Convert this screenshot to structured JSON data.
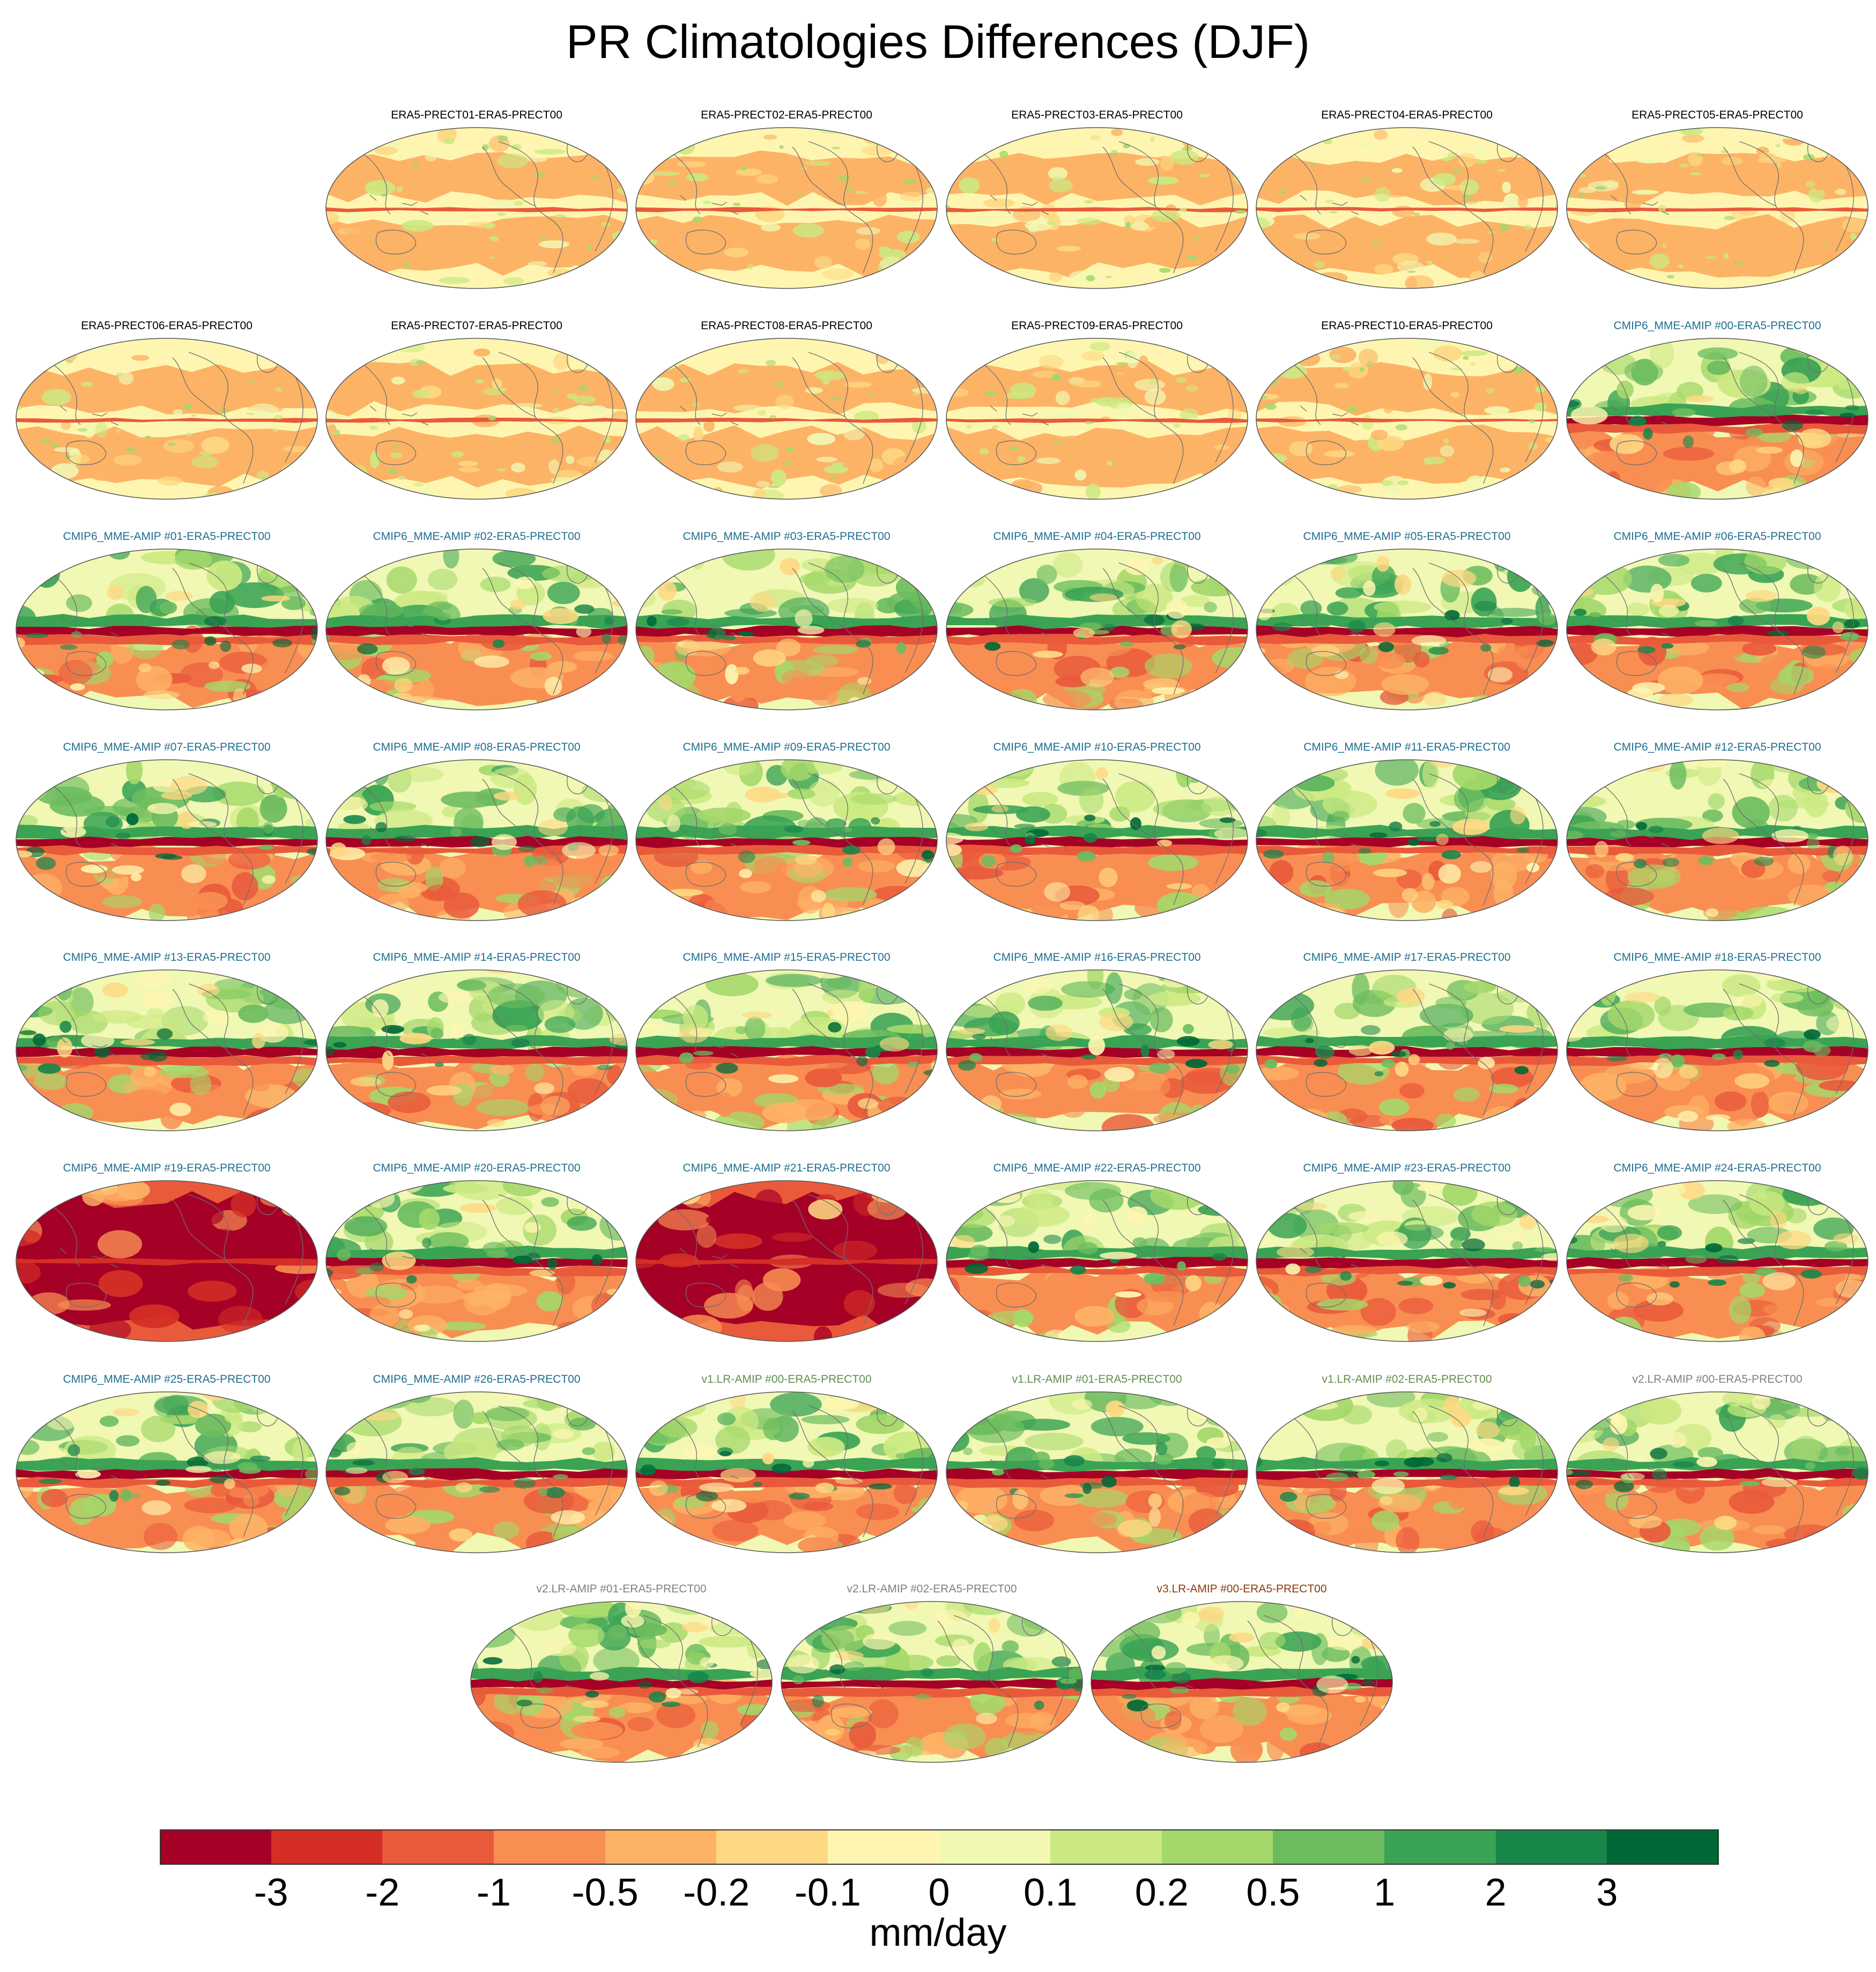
{
  "title": "PR Climatologies Differences (DJF)",
  "colorbar": {
    "units": "mm/day",
    "tick_labels": [
      "-3",
      "-2",
      "-1",
      "-0.5",
      "-0.2",
      "-0.1",
      "0",
      "0.1",
      "0.2",
      "0.5",
      "1",
      "2",
      "3"
    ],
    "colors": [
      "#a50026",
      "#d42e26",
      "#e95a3b",
      "#f98e52",
      "#fdb366",
      "#fed883",
      "#fef6b0",
      "#f0f8b4",
      "#cbe982",
      "#a4d86a",
      "#6cbc5f",
      "#3aa354",
      "#19864a",
      "#006837"
    ]
  },
  "panel_colors": {
    "obs": "#000000",
    "cmip6": "#1f6e8f",
    "v1": "#5f8f4f",
    "v2": "#808080",
    "v3": "#8b3a0e"
  },
  "panels": [
    {
      "label": "ERA5-PRECT01-ERA5-PRECT00",
      "group": "obs",
      "style": "obs"
    },
    {
      "label": "ERA5-PRECT02-ERA5-PRECT00",
      "group": "obs",
      "style": "obs"
    },
    {
      "label": "ERA5-PRECT03-ERA5-PRECT00",
      "group": "obs",
      "style": "obs"
    },
    {
      "label": "ERA5-PRECT04-ERA5-PRECT00",
      "group": "obs",
      "style": "obs"
    },
    {
      "label": "ERA5-PRECT05-ERA5-PRECT00",
      "group": "obs",
      "style": "obs"
    },
    {
      "label": "ERA5-PRECT06-ERA5-PRECT00",
      "group": "obs",
      "style": "obs"
    },
    {
      "label": "ERA5-PRECT07-ERA5-PRECT00",
      "group": "obs",
      "style": "obs"
    },
    {
      "label": "ERA5-PRECT08-ERA5-PRECT00",
      "group": "obs",
      "style": "obs"
    },
    {
      "label": "ERA5-PRECT09-ERA5-PRECT00",
      "group": "obs",
      "style": "obs"
    },
    {
      "label": "ERA5-PRECT10-ERA5-PRECT00",
      "group": "obs",
      "style": "obs"
    },
    {
      "label": "CMIP6_MME-AMIP  #00-ERA5-PRECT00",
      "group": "cmip6",
      "style": "model"
    },
    {
      "label": "CMIP6_MME-AMIP  #01-ERA5-PRECT00",
      "group": "cmip6",
      "style": "model"
    },
    {
      "label": "CMIP6_MME-AMIP  #02-ERA5-PRECT00",
      "group": "cmip6",
      "style": "model"
    },
    {
      "label": "CMIP6_MME-AMIP  #03-ERA5-PRECT00",
      "group": "cmip6",
      "style": "model"
    },
    {
      "label": "CMIP6_MME-AMIP  #04-ERA5-PRECT00",
      "group": "cmip6",
      "style": "model"
    },
    {
      "label": "CMIP6_MME-AMIP  #05-ERA5-PRECT00",
      "group": "cmip6",
      "style": "model"
    },
    {
      "label": "CMIP6_MME-AMIP  #06-ERA5-PRECT00",
      "group": "cmip6",
      "style": "model"
    },
    {
      "label": "CMIP6_MME-AMIP  #07-ERA5-PRECT00",
      "group": "cmip6",
      "style": "model"
    },
    {
      "label": "CMIP6_MME-AMIP  #08-ERA5-PRECT00",
      "group": "cmip6",
      "style": "model"
    },
    {
      "label": "CMIP6_MME-AMIP  #09-ERA5-PRECT00",
      "group": "cmip6",
      "style": "model"
    },
    {
      "label": "CMIP6_MME-AMIP  #10-ERA5-PRECT00",
      "group": "cmip6",
      "style": "model"
    },
    {
      "label": "CMIP6_MME-AMIP  #11-ERA5-PRECT00",
      "group": "cmip6",
      "style": "model"
    },
    {
      "label": "CMIP6_MME-AMIP  #12-ERA5-PRECT00",
      "group": "cmip6",
      "style": "model"
    },
    {
      "label": "CMIP6_MME-AMIP  #13-ERA5-PRECT00",
      "group": "cmip6",
      "style": "model"
    },
    {
      "label": "CMIP6_MME-AMIP  #14-ERA5-PRECT00",
      "group": "cmip6",
      "style": "model"
    },
    {
      "label": "CMIP6_MME-AMIP  #15-ERA5-PRECT00",
      "group": "cmip6",
      "style": "model"
    },
    {
      "label": "CMIP6_MME-AMIP  #16-ERA5-PRECT00",
      "group": "cmip6",
      "style": "model"
    },
    {
      "label": "CMIP6_MME-AMIP  #17-ERA5-PRECT00",
      "group": "cmip6",
      "style": "model"
    },
    {
      "label": "CMIP6_MME-AMIP  #18-ERA5-PRECT00",
      "group": "cmip6",
      "style": "model"
    },
    {
      "label": "CMIP6_MME-AMIP  #19-ERA5-PRECT00",
      "group": "cmip6",
      "style": "dry"
    },
    {
      "label": "CMIP6_MME-AMIP  #20-ERA5-PRECT00",
      "group": "cmip6",
      "style": "model"
    },
    {
      "label": "CMIP6_MME-AMIP  #21-ERA5-PRECT00",
      "group": "cmip6",
      "style": "dry"
    },
    {
      "label": "CMIP6_MME-AMIP  #22-ERA5-PRECT00",
      "group": "cmip6",
      "style": "model"
    },
    {
      "label": "CMIP6_MME-AMIP  #23-ERA5-PRECT00",
      "group": "cmip6",
      "style": "model"
    },
    {
      "label": "CMIP6_MME-AMIP  #24-ERA5-PRECT00",
      "group": "cmip6",
      "style": "model"
    },
    {
      "label": "CMIP6_MME-AMIP  #25-ERA5-PRECT00",
      "group": "cmip6",
      "style": "model"
    },
    {
      "label": "CMIP6_MME-AMIP  #26-ERA5-PRECT00",
      "group": "cmip6",
      "style": "model"
    },
    {
      "label": "v1.LR-AMIP  #00-ERA5-PRECT00",
      "group": "v1",
      "style": "model"
    },
    {
      "label": "v1.LR-AMIP  #01-ERA5-PRECT00",
      "group": "v1",
      "style": "model"
    },
    {
      "label": "v1.LR-AMIP  #02-ERA5-PRECT00",
      "group": "v1",
      "style": "model"
    },
    {
      "label": "v2.LR-AMIP  #00-ERA5-PRECT00",
      "group": "v2",
      "style": "model"
    },
    {
      "label": "v2.LR-AMIP  #01-ERA5-PRECT00",
      "group": "v2",
      "style": "model"
    },
    {
      "label": "v2.LR-AMIP  #02-ERA5-PRECT00",
      "group": "v2",
      "style": "model"
    },
    {
      "label": "v3.LR-AMIP  #00-ERA5-PRECT00",
      "group": "v3",
      "style": "model"
    }
  ]
}
